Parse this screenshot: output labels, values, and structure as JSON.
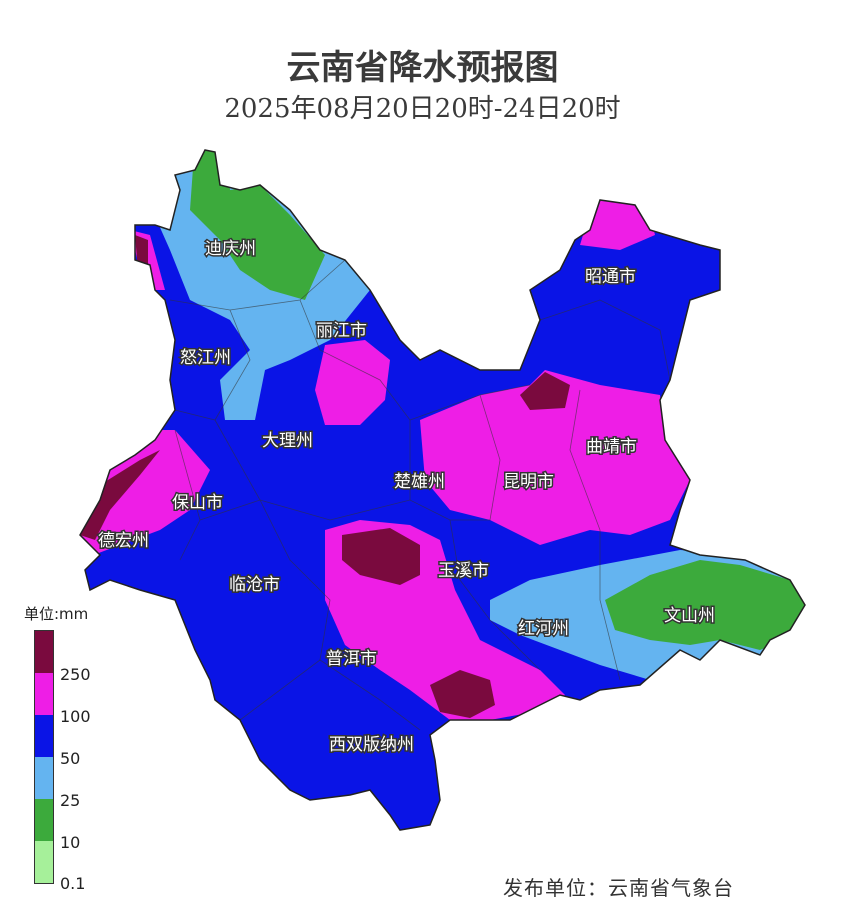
{
  "title": "云南省降水预报图",
  "subtitle": "2025年08月20日20时-24日20时",
  "regions": [
    "迪庆州",
    "昭通市",
    "丽江市",
    "怒江州",
    "大理州",
    "楚雄州",
    "昆明市",
    "曲靖市",
    "保山市",
    "德宏州",
    "玉溪市",
    "临沧市",
    "红河州",
    "文山州",
    "普洱市",
    "西双版纳州"
  ],
  "legend": {
    "unit": "单位:mm",
    "thresholds": [
      "250",
      "100",
      "50",
      "25",
      "10",
      "0.1"
    ],
    "colors": [
      "#7a0a3e",
      "#ee1ee6",
      "#0a14e6",
      "#64b4f0",
      "#3caa3c",
      "#a6f09a"
    ]
  },
  "publisher": "发布单位：云南省气象台"
}
